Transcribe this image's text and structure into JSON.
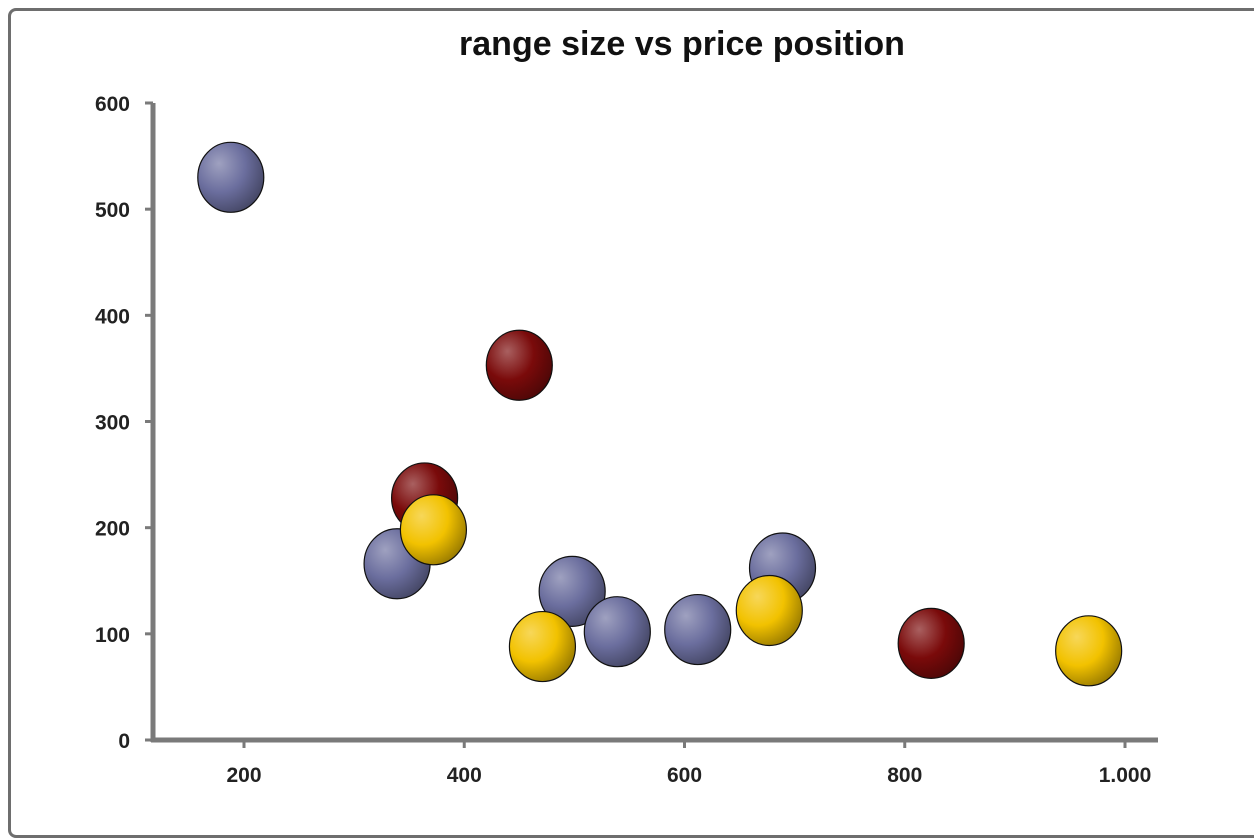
{
  "chart_data": {
    "type": "scatter",
    "title": "range size vs price position",
    "xlabel": "",
    "ylabel": "",
    "xlim": [
      150,
      1050
    ],
    "ylim": [
      0,
      600
    ],
    "x_ticks": [
      "200",
      "400",
      "600",
      "800",
      "1.000"
    ],
    "x_tick_values": [
      200,
      400,
      600,
      800,
      1000
    ],
    "y_ticks": [
      "0",
      "100",
      "200",
      "300",
      "400",
      "500",
      "600"
    ],
    "y_tick_values": [
      0,
      100,
      200,
      300,
      400,
      500,
      600
    ],
    "grid": false,
    "legend": "none",
    "series": [
      {
        "color": "#6b6e9e",
        "points": [
          {
            "x": 188,
            "y": 530
          },
          {
            "x": 339,
            "y": 166
          },
          {
            "x": 498,
            "y": 140
          },
          {
            "x": 539,
            "y": 102
          },
          {
            "x": 612,
            "y": 104
          },
          {
            "x": 689,
            "y": 162
          }
        ]
      },
      {
        "color": "#7a0a0a",
        "points": [
          {
            "x": 364,
            "y": 228
          },
          {
            "x": 450,
            "y": 353
          },
          {
            "x": 824,
            "y": 91
          }
        ]
      },
      {
        "color": "#f2c200",
        "points": [
          {
            "x": 372,
            "y": 198
          },
          {
            "x": 471,
            "y": 88
          },
          {
            "x": 677,
            "y": 122
          },
          {
            "x": 967,
            "y": 84
          }
        ]
      }
    ]
  }
}
